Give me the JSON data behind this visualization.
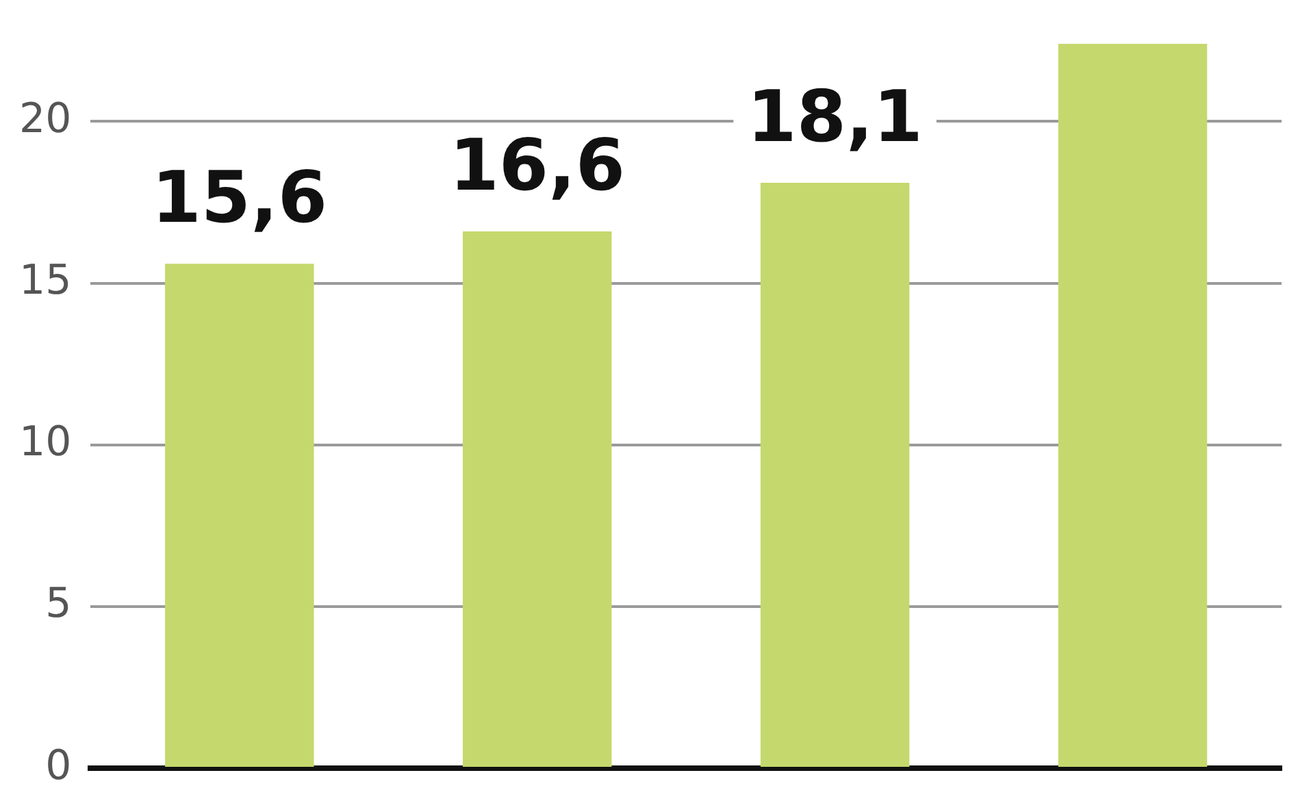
{
  "chart_data": {
    "type": "bar",
    "categories": [
      null,
      null,
      null,
      null
    ],
    "series": [
      {
        "color": "#c5d86d",
        "values": [
          15.6,
          16.6,
          18.1,
          22.4
        ]
      }
    ],
    "value_labels": [
      "15,6",
      "16,6",
      "18,1",
      null
    ],
    "ylim": [
      0,
      22.4
    ],
    "yticks": [
      0,
      5,
      10,
      15,
      20
    ],
    "grid": "y",
    "legend": false
  }
}
